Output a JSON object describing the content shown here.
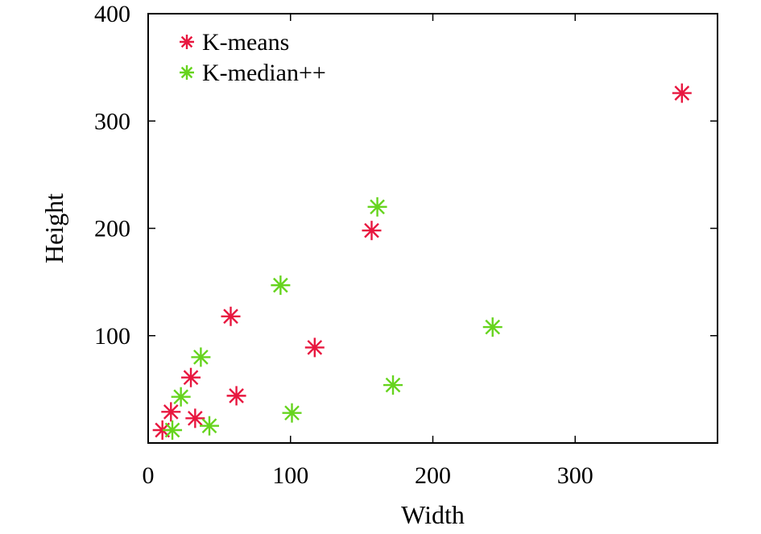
{
  "chart_data": {
    "type": "scatter",
    "xlabel": "Width",
    "ylabel": "Height",
    "xlim": [
      0,
      400
    ],
    "ylim": [
      0,
      400
    ],
    "xticks": [
      0,
      100,
      200,
      300
    ],
    "yticks": [
      100,
      200,
      300,
      400
    ],
    "grid": false,
    "legend_position": "top-left",
    "marker": "asterisk",
    "series": [
      {
        "name": "K-means",
        "color": "#e8173f",
        "points": [
          [
            10,
            12
          ],
          [
            16,
            29
          ],
          [
            30,
            61
          ],
          [
            33,
            23
          ],
          [
            58,
            118
          ],
          [
            62,
            44
          ],
          [
            117,
            89
          ],
          [
            157,
            198
          ],
          [
            375,
            326
          ]
        ]
      },
      {
        "name": "K-median++",
        "color": "#66d41e",
        "points": [
          [
            17,
            12
          ],
          [
            23,
            43
          ],
          [
            37,
            80
          ],
          [
            43,
            16
          ],
          [
            93,
            147
          ],
          [
            101,
            28
          ],
          [
            161,
            220
          ],
          [
            172,
            54
          ],
          [
            242,
            108
          ]
        ]
      }
    ]
  }
}
